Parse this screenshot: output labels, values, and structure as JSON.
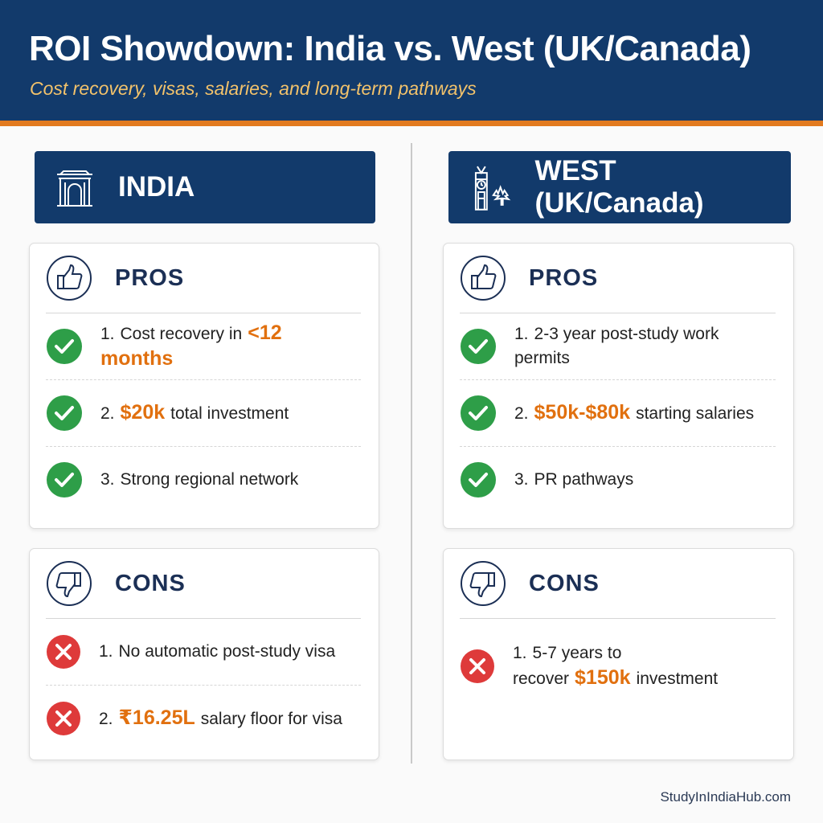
{
  "header": {
    "title": "ROI Showdown: India vs. West (UK/Canada)",
    "subtitle": "Cost recovery, visas, salaries, and long-term pathways"
  },
  "columns": [
    {
      "title": "INDIA",
      "pros": {
        "heading": "PROS",
        "items": [
          {
            "number": "1.",
            "segments": [
              {
                "text": "Cost recovery in"
              },
              {
                "text": "<12 months",
                "highlight": true
              }
            ]
          },
          {
            "number": "2.",
            "segments": [
              {
                "text": "$20k",
                "highlight": true
              },
              {
                "text": "total investment"
              }
            ]
          },
          {
            "number": "3.",
            "segments": [
              {
                "text": "Strong regional network"
              }
            ]
          }
        ]
      },
      "cons": {
        "heading": "CONS",
        "items": [
          {
            "number": "1.",
            "segments": [
              {
                "text": "No automatic post-study visa"
              }
            ]
          },
          {
            "number": "2.",
            "segments": [
              {
                "text": "₹16.25L",
                "highlight": true
              },
              {
                "text": "salary floor for visa"
              }
            ]
          }
        ]
      }
    },
    {
      "title": "WEST (UK/Canada)",
      "pros": {
        "heading": "PROS",
        "items": [
          {
            "number": "1.",
            "segments": [
              {
                "text": "2-3 year post-study work permits"
              }
            ]
          },
          {
            "number": "2.",
            "segments": [
              {
                "text": "$50k-$80k",
                "highlight": true
              },
              {
                "text": "starting salaries"
              }
            ]
          },
          {
            "number": "3.",
            "segments": [
              {
                "text": "PR pathways"
              }
            ]
          }
        ]
      },
      "cons": {
        "heading": "CONS",
        "items": [
          {
            "number": "1.",
            "segments": [
              {
                "text": "5-7 years to recover"
              },
              {
                "text": "$150k",
                "highlight": true
              },
              {
                "text": "investment"
              }
            ]
          }
        ]
      }
    }
  ],
  "footer": "StudyInIndiaHub.com"
}
